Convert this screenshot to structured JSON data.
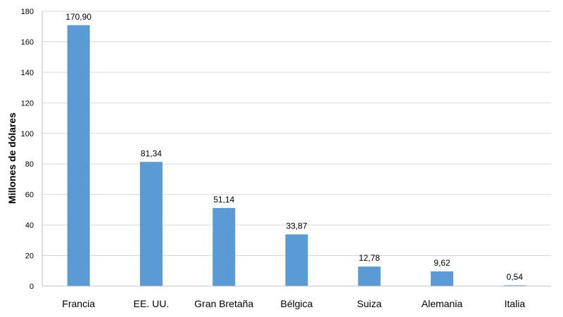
{
  "chart_data": {
    "type": "bar",
    "categories": [
      "Francia",
      "EE. UU.",
      "Gran Bretaña",
      "Bélgica",
      "Suiza",
      "Alemania",
      "Italia"
    ],
    "values": [
      170.9,
      81.34,
      51.14,
      33.87,
      12.78,
      9.62,
      0.54
    ],
    "value_labels": [
      "170,90",
      "81,34",
      "51,14",
      "33,87",
      "12,78",
      "9,62",
      "0,54"
    ],
    "ylabel": "Millones de dólares",
    "ylim": [
      0,
      180
    ],
    "yticks": [
      0,
      20,
      40,
      60,
      80,
      100,
      120,
      140,
      160,
      180
    ],
    "grid": true,
    "bar_color": "#5b9bd5"
  }
}
